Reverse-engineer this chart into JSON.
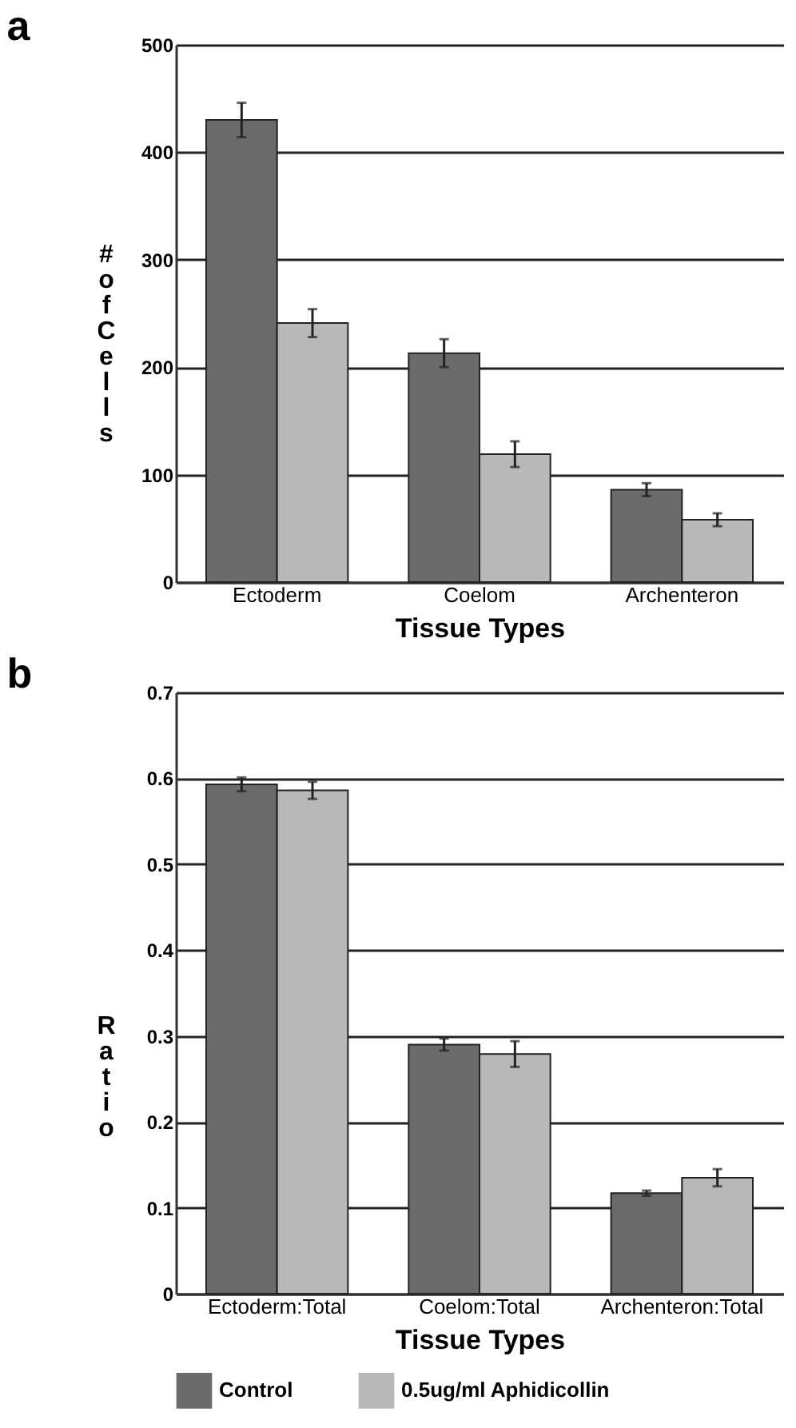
{
  "chart_data": [
    {
      "type": "bar",
      "title": "a",
      "xlabel": "Tissue Types",
      "ylabel": "# of Cells",
      "categories": [
        "Ectoderm",
        "Coelom",
        "Archenteron"
      ],
      "series": [
        {
          "color": "#6b6b6b",
          "values": [
            430,
            213,
            86
          ],
          "errors": [
            16,
            13,
            6
          ]
        },
        {
          "color": "#b8b8b8",
          "values": [
            241,
            119,
            58
          ],
          "errors": [
            13,
            12,
            6
          ]
        }
      ],
      "ylim": [
        0,
        500
      ],
      "yticks": [
        0,
        100,
        200,
        300,
        400,
        500
      ],
      "grid": "y"
    },
    {
      "type": "bar",
      "title": "b",
      "xlabel": "Tissue Types",
      "ylabel": "Ratio",
      "categories": [
        "Ectoderm:Total",
        "Coelom:Total",
        "Archenteron:Total"
      ],
      "series": [
        {
          "name": "Control",
          "color": "#6b6b6b",
          "values": [
            0.593,
            0.29,
            0.117
          ],
          "errors": [
            0.008,
            0.007,
            0.003
          ]
        },
        {
          "name": "0.5ug/ml Aphidicollin",
          "color": "#b8b8b8",
          "values": [
            0.586,
            0.279,
            0.135
          ],
          "errors": [
            0.01,
            0.015,
            0.01
          ]
        }
      ],
      "ylim": [
        0,
        0.7
      ],
      "yticks": [
        0,
        0.1,
        0.2,
        0.3,
        0.4,
        0.5,
        0.6,
        0.7
      ],
      "grid": "y",
      "legend": "bottom"
    }
  ]
}
